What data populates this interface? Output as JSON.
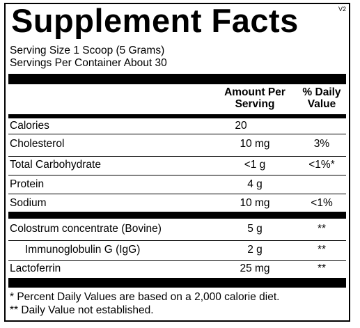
{
  "label": {
    "title": "Supplement Facts",
    "version": "V2",
    "serving_size": "Serving Size 1 Scoop (5 Grams)",
    "servings_per_container": "Servings Per Container About 30"
  },
  "table": {
    "headers": {
      "amount_line1": "Amount Per",
      "amount_line2": "Serving",
      "dv_line1": "% Daily",
      "dv_line2": "Value"
    },
    "rows": [
      {
        "name": "Calories",
        "amount": "20",
        "dv": ""
      },
      {
        "name": "Cholesterol",
        "amount": "10 mg",
        "dv": "3%"
      },
      {
        "name": "Total Carbohydrate",
        "amount": "<1 g",
        "dv": "<1%*"
      },
      {
        "name": "Protein",
        "amount": "4 g",
        "dv": ""
      },
      {
        "name": "Sodium",
        "amount": "10 mg",
        "dv": "<1%"
      },
      {
        "name": "Colostrum concentrate (Bovine)",
        "amount": "5 g",
        "dv": "**"
      },
      {
        "name": "Immunoglobulin G (IgG)",
        "amount": "2 g",
        "dv": "**"
      },
      {
        "name": "Lactoferrin",
        "amount": "25 mg",
        "dv": "**"
      }
    ]
  },
  "footnotes": {
    "note1": "* Percent Daily Values are based on a 2,000 calorie diet.",
    "note2": "** Daily Value not established."
  }
}
